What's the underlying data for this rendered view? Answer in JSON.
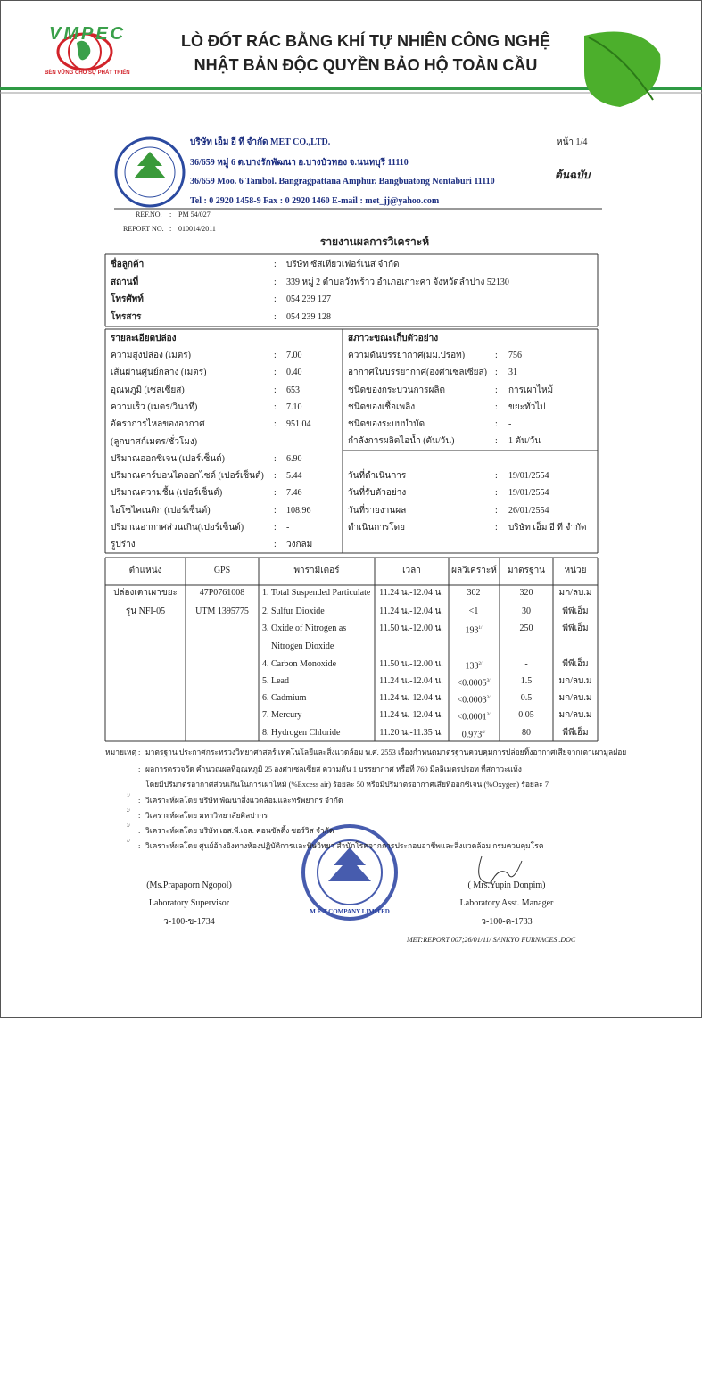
{
  "header": {
    "brand": "VMPEC",
    "slogan": "BỀN VỮNG CHO SỰ PHÁT TRIỂN",
    "title_lines": [
      "LÒ ĐỐT RÁC BẰNG KHÍ TỰ NHIÊN CÔNG NGHỆ",
      "NHẬT BẢN ĐỘC QUYỀN BẢO HỘ TOÀN CẦU"
    ]
  },
  "separator": ":",
  "company": {
    "name": "บริษัท เอ็ม อี ที จำกัด MET CO.,LTD.",
    "address_th": "36/659 หมู่ 6 ต.บางรักพัฒนา อ.บางบัวทอง จ.นนทบุรี 11110",
    "address_en": "36/659 Moo. 6 Tambol. Bangragpattana Amphur. Bangbuatong Nontaburi 11110",
    "contact": "Tel : 0 2920 1458-9 Fax : 0 2920 1460 E-mail : met_jj@yahoo.com",
    "page": "หน้า 1/4",
    "copy": "ต้นฉบับ"
  },
  "refs": [
    {
      "label": "REF.NO.",
      "value": "PM 54/027"
    },
    {
      "label": "REPORT NO.",
      "value": "010014/2011"
    }
  ],
  "report_title": "รายงานผลการวิเคราะห์",
  "customer": [
    {
      "label": "ชื่อลูกค้า",
      "value": "บริษัท ซัสเทียวเฟอร์เนส จำกัด"
    },
    {
      "label": "สถานที่",
      "value": "339 หมู่ 2 ตำบลวังพร้าว อำเภอเกาะคา จังหวัดลำปาง 52130"
    },
    {
      "label": "โทรศัพท์",
      "value": "054 239 127"
    },
    {
      "label": "โทรสาร",
      "value": "054 239 128"
    }
  ],
  "stack": {
    "heading": "รายละเอียดปล่อง",
    "rows": [
      {
        "label": "ความสูงปล่อง (เมตร)",
        "value": "7.00"
      },
      {
        "label": "เส้นผ่านศูนย์กลาง (เมตร)",
        "value": "0.40"
      },
      {
        "label": "อุณหภูมิ (เซลเซียส)",
        "value": "653"
      },
      {
        "label": "ความเร็ว (เมตร/วินาที)",
        "value": "7.10"
      },
      {
        "label": "อัตราการไหลของอากาศ",
        "label2": "(ลูกบาศก์เมตร/ชั่วโมง)",
        "value": "951.04"
      },
      {
        "label": "ปริมาณออกซิเจน (เปอร์เซ็นต์)",
        "value": "6.90"
      },
      {
        "label": "ปริมาณคาร์บอนไดออกไซด์ (เปอร์เซ็นต์)",
        "value": "5.44"
      },
      {
        "label": "ปริมาณความชื้น (เปอร์เซ็นต์)",
        "value": "7.46"
      },
      {
        "label": "ไอโซไคเนติก (เปอร์เซ็นต์)",
        "value": "108.96"
      },
      {
        "label": "ปริมาณอากาศส่วนเกิน(เปอร์เซ็นต์)",
        "value": "-"
      },
      {
        "label": "รูปร่าง",
        "value": "วงกลม"
      }
    ]
  },
  "conditions": {
    "heading": "สภาวะขณะเก็บตัวอย่าง",
    "rows": [
      {
        "label": "ความดันบรรยากาศ(มม.ปรอท)",
        "value": "756"
      },
      {
        "label": "อากาศในบรรยากาศ(องศาเซลเซียส)",
        "value": "31"
      },
      {
        "label": "ชนิดของกระบวนการผลิต",
        "value": "การเผาไหม้"
      },
      {
        "label": "ชนิดของเชื้อเพลิง",
        "value": "ขยะทั่วไป"
      },
      {
        "label": "ชนิดของระบบบำบัด",
        "value": "-"
      },
      {
        "label": "กำลังการผลิตไอน้ำ (ตัน/วัน)",
        "value": "1 ตัน/วัน"
      },
      {
        "label": "วันที่ดำเนินการ",
        "value": "19/01/2554"
      },
      {
        "label": "วันที่รับตัวอย่าง",
        "value": "19/01/2554"
      },
      {
        "label": "วันที่รายงานผล",
        "value": "26/01/2554"
      },
      {
        "label": "ดำเนินการโดย",
        "value": "บริษัท เอ็ม อี ที จำกัด"
      }
    ]
  },
  "results": {
    "headers": [
      "ตำแหน่ง",
      "GPS",
      "พารามิเตอร์",
      "เวลา",
      "ผลวิเคราะห์",
      "มาตรฐาน",
      "หน่วย"
    ],
    "location": [
      "ปล่องเตาเผาขยะ",
      "รุ่น NFI-05"
    ],
    "gps": [
      "47P0761008",
      "UTM 1395775"
    ],
    "rows": [
      {
        "parameter": [
          "1. Total Suspended  Particulate"
        ],
        "time": "11.24 น.-12.04 น.",
        "result": "302",
        "standard": "320",
        "unit": "มก/ลบ.ม"
      },
      {
        "parameter": [
          "2. Sulfur Dioxide"
        ],
        "time": "11.24 น.-12.04 น.",
        "result": "<1",
        "standard": "30",
        "unit": "พีพีเอ็ม"
      },
      {
        "parameter": [
          "3. Oxide of Nitrogen as",
          "Nitrogen Dioxide"
        ],
        "time": "11.50 น.-12.00 น.",
        "result": "193",
        "note": "1/",
        "standard": "250",
        "unit": "พีพีเอ็ม"
      },
      {
        "parameter": [
          "4. Carbon Monoxide"
        ],
        "time": "11.50 น.-12.00 น.",
        "result": "133",
        "note": "2/",
        "standard": "-",
        "unit": "พีพีเอ็ม"
      },
      {
        "parameter": [
          "5. Lead"
        ],
        "time": "11.24 น.-12.04 น.",
        "result": "<0.0005",
        "note": "3/",
        "standard": "1.5",
        "unit": "มก/ลบ.ม"
      },
      {
        "parameter": [
          "6. Cadmium"
        ],
        "time": "11.24 น.-12.04 น.",
        "result": "<0.0003",
        "note": "3/",
        "standard": "0.5",
        "unit": "มก/ลบ.ม"
      },
      {
        "parameter": [
          "7. Mercury"
        ],
        "time": "11.24 น.-12.04 น.",
        "result": "<0.0001",
        "note": "3/",
        "standard": "0.05",
        "unit": "มก/ลบ.ม"
      },
      {
        "parameter": [
          "8. Hydrogen Chloride"
        ],
        "time": "11.20 น.-11.35 น.",
        "result": "0.973",
        "note": "4/",
        "standard": "80",
        "unit": "พีพีเอ็ม"
      }
    ]
  },
  "notes": {
    "label": "หมายเหตุ",
    "lines": [
      "มาตรฐาน ประกาศกระทรวงวิทยาศาสตร์ เทคโนโลยีและสิ่งแวดล้อม พ.ศ. 2553 เรื่องกำหนดมาตรฐานควบคุมการปล่อยทิ้งอากาศเสียจากเตาเผามูลฝอย",
      "ผลการตรวจวัด คำนวณผลที่อุณหภูมิ 25 องศาเซลเซียส ความดัน 1 บรรยากาศ หรือที่ 760 มิลลิเมตรปรอท ที่สภาวะแห้ง",
      "โดยมีปริมาตรอากาศส่วนเกินในการเผาไหม้ (%Excess air) ร้อยละ 50 หรือมีปริมาตรอากาศเสียที่ออกซิเจน (%Oxygen) ร้อยละ 7"
    ],
    "footnotes": [
      {
        "mark": "1/",
        "text": "วิเคราะห์ผลโดย บริษัท พัฒนาสิ่งแวดล้อมและทรัพยากร จำกัด"
      },
      {
        "mark": "2/",
        "text": "วิเคราะห์ผลโดย มหาวิทยาลัยศิลปากร"
      },
      {
        "mark": "3/",
        "text": "วิเคราะห์ผลโดย บริษัท เอส.พี.เอส. คอนซัลติ้ง ซอร์วิส จำกัด"
      },
      {
        "mark": "4/",
        "text": "วิเคราะห์ผลโดย ศูนย์อ้างอิงทางห้องปฏิบัติการและพิษวิทยา สำนักโรคจากการประกอบอาชีพและสิ่งแวดล้อม กรมควบคุมโรค"
      }
    ]
  },
  "signatures": [
    {
      "name": "(Ms.Prapaporn Ngopol)",
      "title": "Laboratory Supervisor",
      "license": "ว-100-ข-1734"
    },
    {
      "name": "( Mrs.Yupin Donpim)",
      "title": "Laboratory Asst. Manager",
      "license": "ว-100-ค-1733"
    }
  ],
  "stamp": "M E T COMPANY LIMITED",
  "footer": "MET:REPORT 007;26/01/11/ SANKYO FURNACES .DOC"
}
